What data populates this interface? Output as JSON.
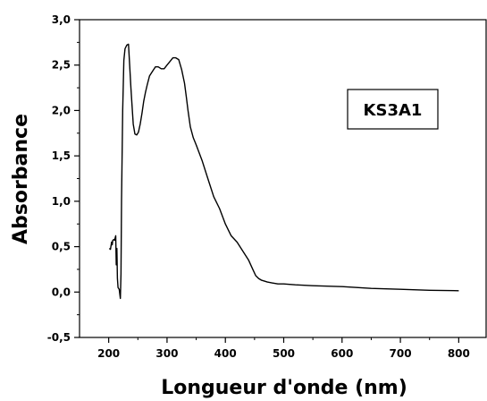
{
  "chart_data": {
    "type": "line",
    "title": "",
    "xlabel": "Longueur d'onde (nm)",
    "ylabel": "Absorbance",
    "xlim": [
      150,
      850
    ],
    "ylim": [
      -0.5,
      3.0
    ],
    "x_ticks": [
      200,
      300,
      400,
      500,
      600,
      700,
      800
    ],
    "x_tick_labels": [
      "200",
      "300",
      "400",
      "500",
      "600",
      "700",
      "800"
    ],
    "y_ticks": [
      -0.5,
      0.0,
      0.5,
      1.0,
      1.5,
      2.0,
      2.5,
      3.0
    ],
    "y_tick_labels": [
      "-0,5",
      "0,0",
      "0,5",
      "1,0",
      "1,5",
      "2,0",
      "2,5",
      "3,0"
    ],
    "grid": false,
    "legend_position": "top-right",
    "series": [
      {
        "name": "KS3A1",
        "color": "#000000",
        "x": [
          201,
          203,
          205,
          206,
          207,
          209,
          210,
          212,
          213,
          214,
          215,
          216,
          218,
          220,
          221,
          222,
          224,
          226,
          228,
          231,
          234,
          236,
          238,
          240,
          242,
          245,
          248,
          251,
          254,
          257,
          260,
          263,
          266,
          270,
          275,
          280,
          285,
          290,
          295,
          300,
          305,
          310,
          315,
          320,
          325,
          330,
          333,
          336,
          340,
          345,
          350,
          360,
          370,
          380,
          390,
          400,
          410,
          420,
          430,
          440,
          447,
          452,
          457,
          462,
          467,
          472,
          480,
          490,
          500,
          520,
          550,
          600,
          650,
          700,
          750,
          800
        ],
        "y": [
          0.48,
          0.47,
          0.55,
          0.52,
          0.57,
          0.58,
          0.57,
          0.62,
          0.3,
          0.48,
          0.15,
          0.05,
          0.03,
          -0.07,
          0.2,
          1.0,
          2.0,
          2.55,
          2.68,
          2.72,
          2.73,
          2.5,
          2.25,
          2.05,
          1.85,
          1.74,
          1.73,
          1.76,
          1.85,
          1.97,
          2.1,
          2.2,
          2.28,
          2.38,
          2.43,
          2.48,
          2.48,
          2.46,
          2.46,
          2.5,
          2.54,
          2.58,
          2.58,
          2.56,
          2.45,
          2.3,
          2.15,
          2.0,
          1.82,
          1.7,
          1.62,
          1.45,
          1.25,
          1.05,
          0.92,
          0.75,
          0.62,
          0.55,
          0.45,
          0.35,
          0.25,
          0.18,
          0.15,
          0.13,
          0.12,
          0.11,
          0.1,
          0.09,
          0.09,
          0.08,
          0.07,
          0.06,
          0.04,
          0.03,
          0.02,
          0.015
        ]
      }
    ]
  }
}
